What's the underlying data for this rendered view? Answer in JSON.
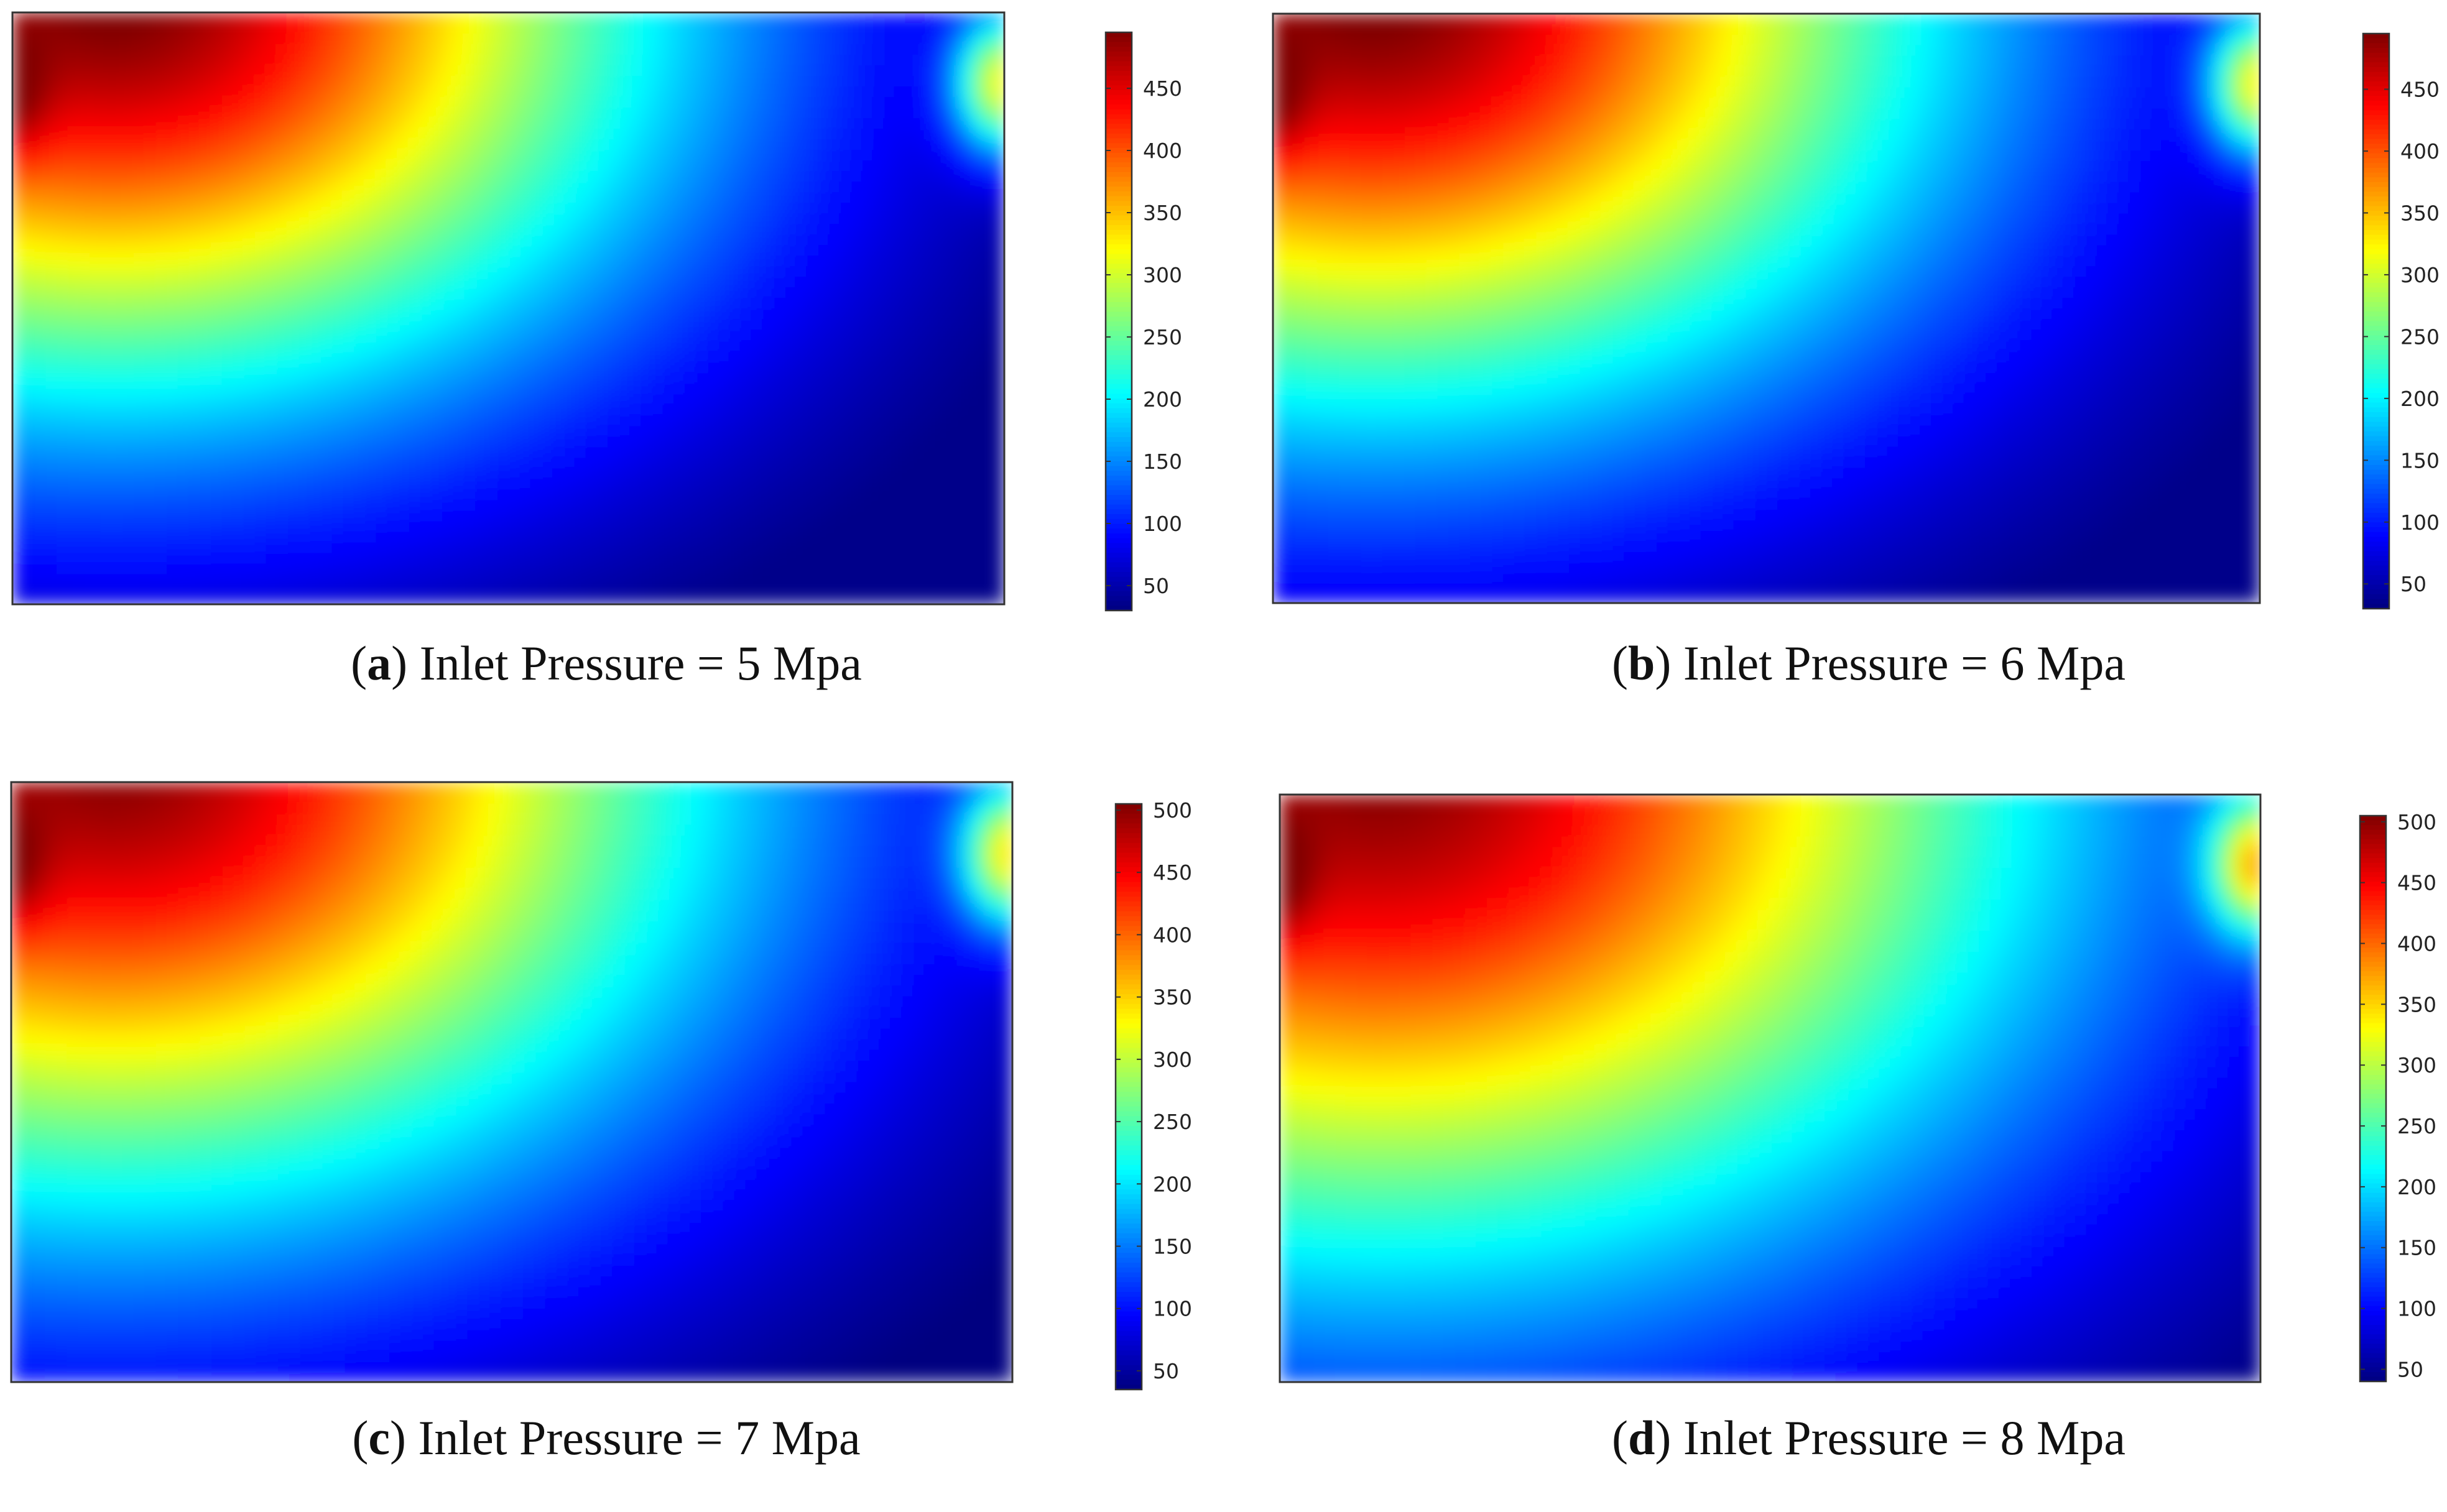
{
  "figure": {
    "panels": [
      {
        "letter": "a",
        "caption": "Inlet Pressure = 5 Mpa"
      },
      {
        "letter": "b",
        "caption": "Inlet Pressure = 6 Mpa"
      },
      {
        "letter": "c",
        "caption": "Inlet Pressure = 7 Mpa"
      },
      {
        "letter": "d",
        "caption": "Inlet Pressure = 8 Mpa"
      }
    ]
  },
  "chart_data": [
    {
      "type": "heatmap",
      "panel": "a",
      "title": "Inlet Pressure = 5 Mpa",
      "colormap": "jet",
      "colorbar": {
        "range": [
          30,
          495
        ],
        "ticks": [
          50,
          100,
          150,
          200,
          250,
          300,
          350,
          400,
          450
        ]
      },
      "hot_spot_location": "top-left",
      "secondary_hot_spot": "top-right edge",
      "cmin": 30,
      "cmax": 495,
      "scale": 1.0
    },
    {
      "type": "heatmap",
      "panel": "b",
      "title": "Inlet Pressure = 6 Mpa",
      "colormap": "jet",
      "colorbar": {
        "range": [
          30,
          495
        ],
        "ticks": [
          50,
          100,
          150,
          200,
          250,
          300,
          350,
          400,
          450
        ]
      },
      "hot_spot_location": "top-left",
      "secondary_hot_spot": "top-right edge",
      "cmin": 30,
      "cmax": 495,
      "scale": 1.03
    },
    {
      "type": "heatmap",
      "panel": "c",
      "title": "Inlet Pressure = 7 Mpa",
      "colormap": "jet",
      "colorbar": {
        "range": [
          35,
          505
        ],
        "ticks": [
          50,
          100,
          150,
          200,
          250,
          300,
          350,
          400,
          450,
          500
        ]
      },
      "hot_spot_location": "top-left",
      "secondary_hot_spot": "top-right edge",
      "cmin": 35,
      "cmax": 505,
      "scale": 1.1
    },
    {
      "type": "heatmap",
      "panel": "d",
      "title": "Inlet Pressure = 8 Mpa",
      "colormap": "jet",
      "colorbar": {
        "range": [
          40,
          505
        ],
        "ticks": [
          50,
          100,
          150,
          200,
          250,
          300,
          350,
          400,
          450,
          500
        ]
      },
      "hot_spot_location": "top-left",
      "secondary_hot_spot": "top-right edge",
      "cmin": 40,
      "cmax": 505,
      "scale": 1.25
    }
  ]
}
